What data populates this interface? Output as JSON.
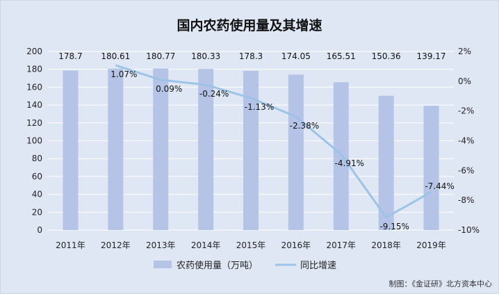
{
  "chart_data": {
    "type": "bar+line",
    "title": "国内农药使用量及其增速",
    "categories": [
      "2011年",
      "2012年",
      "2013年",
      "2014年",
      "2015年",
      "2016年",
      "2017年",
      "2018年",
      "2019年"
    ],
    "series": [
      {
        "name": "农药使用量（万吨）",
        "type": "bar",
        "axis": "left",
        "values": [
          178.7,
          180.61,
          180.77,
          180.33,
          178.3,
          174.05,
          165.51,
          150.36,
          139.17
        ],
        "labels": [
          "178.7",
          "180.61",
          "180.77",
          "180.33",
          "178.3",
          "174.05",
          "165.51",
          "150.36",
          "139.17"
        ]
      },
      {
        "name": "同比增速",
        "type": "line",
        "axis": "right",
        "values": [
          null,
          1.07,
          0.09,
          -0.24,
          -1.13,
          -2.38,
          -4.91,
          -9.15,
          -7.44
        ],
        "labels": [
          "",
          "1.07%",
          "0.09%",
          "-0.24%",
          "-1.13%",
          "-2.38%",
          "-4.91%",
          "-9.15%",
          "-7.44%"
        ]
      }
    ],
    "y_left": {
      "ylim": [
        0,
        200
      ],
      "ticks": [
        0,
        20,
        40,
        60,
        80,
        100,
        120,
        140,
        160,
        180,
        200
      ],
      "tick_labels": [
        "0",
        "20",
        "40",
        "60",
        "80",
        "100",
        "120",
        "140",
        "160",
        "180",
        "200"
      ]
    },
    "y_right": {
      "ylim": [
        -10,
        2
      ],
      "ticks": [
        2,
        0,
        -2,
        -4,
        -6,
        -8,
        -10
      ],
      "tick_labels": [
        "2%",
        "0%",
        "-2%",
        "-4%",
        "-6%",
        "-8%",
        "-10%"
      ]
    },
    "grid": true,
    "legend_position": "bottom",
    "colors": {
      "bar": "#b4c3e6",
      "line": "#9dc3e6",
      "background": "#dfe7f5",
      "grid": "#ffffff"
    }
  },
  "credit": "制图：《金证研》北方资本中心"
}
